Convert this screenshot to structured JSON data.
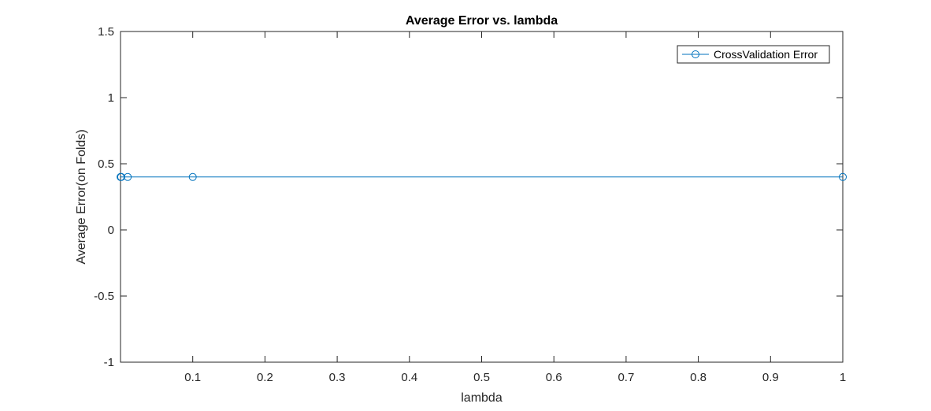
{
  "chart_data": {
    "type": "line",
    "title": "Average Error vs. lambda",
    "xlabel": "lambda",
    "ylabel": "Average Error(on Folds)",
    "xlim": [
      0,
      1
    ],
    "ylim": [
      -1,
      1.5
    ],
    "xticks": [
      0.1,
      0.2,
      0.3,
      0.4,
      0.5,
      0.6,
      0.7,
      0.8,
      0.9,
      1
    ],
    "xtick_labels": [
      "0.1",
      "0.2",
      "0.3",
      "0.4",
      "0.5",
      "0.6",
      "0.7",
      "0.8",
      "0.9",
      "1"
    ],
    "yticks": [
      -1,
      -0.5,
      0,
      0.5,
      1,
      1.5
    ],
    "ytick_labels": [
      "-1",
      "-0.5",
      "0",
      "0.5",
      "1",
      "1.5"
    ],
    "grid": false,
    "legend_position": "top-right",
    "series": [
      {
        "name": "CrossValidation Error",
        "color": "#0072BD",
        "marker": "circle",
        "x": [
          0.0001,
          0.001,
          0.01,
          0.1,
          1
        ],
        "y": [
          0.4,
          0.4,
          0.4,
          0.4,
          0.4
        ]
      }
    ]
  }
}
